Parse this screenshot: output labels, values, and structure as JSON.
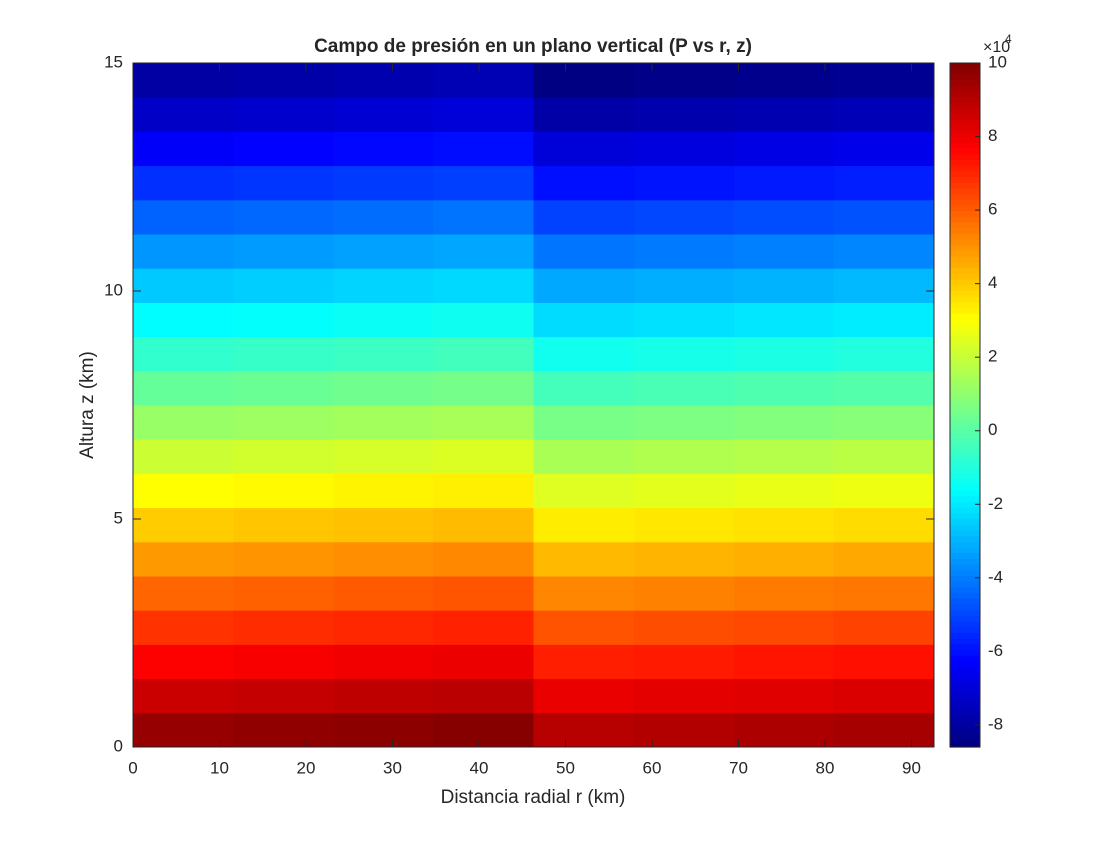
{
  "chart_data": {
    "type": "heatmap",
    "title": "Campo de presión en un plano vertical (P vs r, z)",
    "xlabel": "Distancia radial r (km)",
    "ylabel": "Altura z (km)",
    "x_edges": [
      0,
      11.6,
      23.2,
      34.7,
      46.3,
      57.9,
      69.5,
      81,
      92.6
    ],
    "y_edges": [
      0,
      0.75,
      1.5,
      2.25,
      3,
      3.75,
      4.5,
      5.25,
      6,
      6.75,
      7.5,
      8.25,
      9,
      9.75,
      10.5,
      11.25,
      12,
      12.75,
      13.5,
      14.25,
      15
    ],
    "values": [
      [
        95800,
        96800,
        97800,
        98800,
        89800,
        90800,
        91800,
        92800
      ],
      [
        86400,
        87400,
        88400,
        89400,
        80400,
        81400,
        82400,
        83400
      ],
      [
        77100,
        78100,
        79100,
        80100,
        71100,
        72100,
        73100,
        74100
      ],
      [
        67700,
        68700,
        69700,
        70700,
        61700,
        62700,
        63700,
        64700
      ],
      [
        58300,
        59300,
        60300,
        61300,
        52300,
        53300,
        54300,
        55300
      ],
      [
        48900,
        49900,
        50900,
        51900,
        42900,
        43900,
        44900,
        45900
      ],
      [
        39600,
        40600,
        41600,
        42600,
        33600,
        34600,
        35600,
        36600
      ],
      [
        30200,
        31200,
        32200,
        33200,
        24200,
        25200,
        26200,
        27200
      ],
      [
        20800,
        21800,
        22800,
        23800,
        14800,
        15800,
        16800,
        17800
      ],
      [
        11400,
        12400,
        13400,
        14400,
        5400,
        6400,
        7400,
        8400
      ],
      [
        2100,
        3100,
        4100,
        5100,
        -3900,
        -2900,
        -1900,
        -900
      ],
      [
        -7300,
        -6300,
        -5300,
        -4300,
        -13300,
        -12300,
        -11300,
        -10300
      ],
      [
        -16700,
        -15700,
        -14700,
        -13700,
        -22700,
        -21700,
        -20700,
        -19700
      ],
      [
        -26100,
        -25100,
        -24100,
        -23100,
        -32100,
        -31100,
        -30100,
        -29100
      ],
      [
        -35400,
        -34400,
        -33400,
        -32400,
        -41400,
        -40400,
        -39400,
        -38400
      ],
      [
        -44800,
        -43800,
        -42800,
        -41800,
        -50800,
        -49800,
        -48800,
        -47800
      ],
      [
        -54200,
        -53200,
        -52200,
        -51200,
        -60200,
        -59200,
        -58200,
        -57200
      ],
      [
        -63600,
        -62600,
        -61600,
        -60600,
        -69600,
        -68600,
        -67600,
        -66600
      ],
      [
        -72900,
        -71900,
        -70900,
        -69900,
        -78900,
        -77900,
        -76900,
        -75900
      ],
      [
        -79500,
        -78500,
        -77500,
        -76500,
        -85500,
        -84500,
        -83500,
        -82500
      ]
    ],
    "colormap": "jet",
    "xlim": [
      0,
      92.6
    ],
    "xticks": [
      0,
      10,
      20,
      30,
      40,
      50,
      60,
      70,
      80,
      90
    ],
    "ylim": [
      0,
      15
    ],
    "yticks": [
      0,
      5,
      10,
      15
    ],
    "clim": [
      -86000,
      100000
    ],
    "cticks": [
      {
        "value": -80000,
        "label": "-8"
      },
      {
        "value": -60000,
        "label": "-6"
      },
      {
        "value": -40000,
        "label": "-4"
      },
      {
        "value": -20000,
        "label": "-2"
      },
      {
        "value": 0,
        "label": "0"
      },
      {
        "value": 20000,
        "label": "2"
      },
      {
        "value": 40000,
        "label": "4"
      },
      {
        "value": 60000,
        "label": "6"
      },
      {
        "value": 80000,
        "label": "8"
      },
      {
        "value": 100000,
        "label": "10"
      }
    ],
    "colorbar_multiplier": {
      "base": "×10",
      "exponent": "4"
    }
  }
}
